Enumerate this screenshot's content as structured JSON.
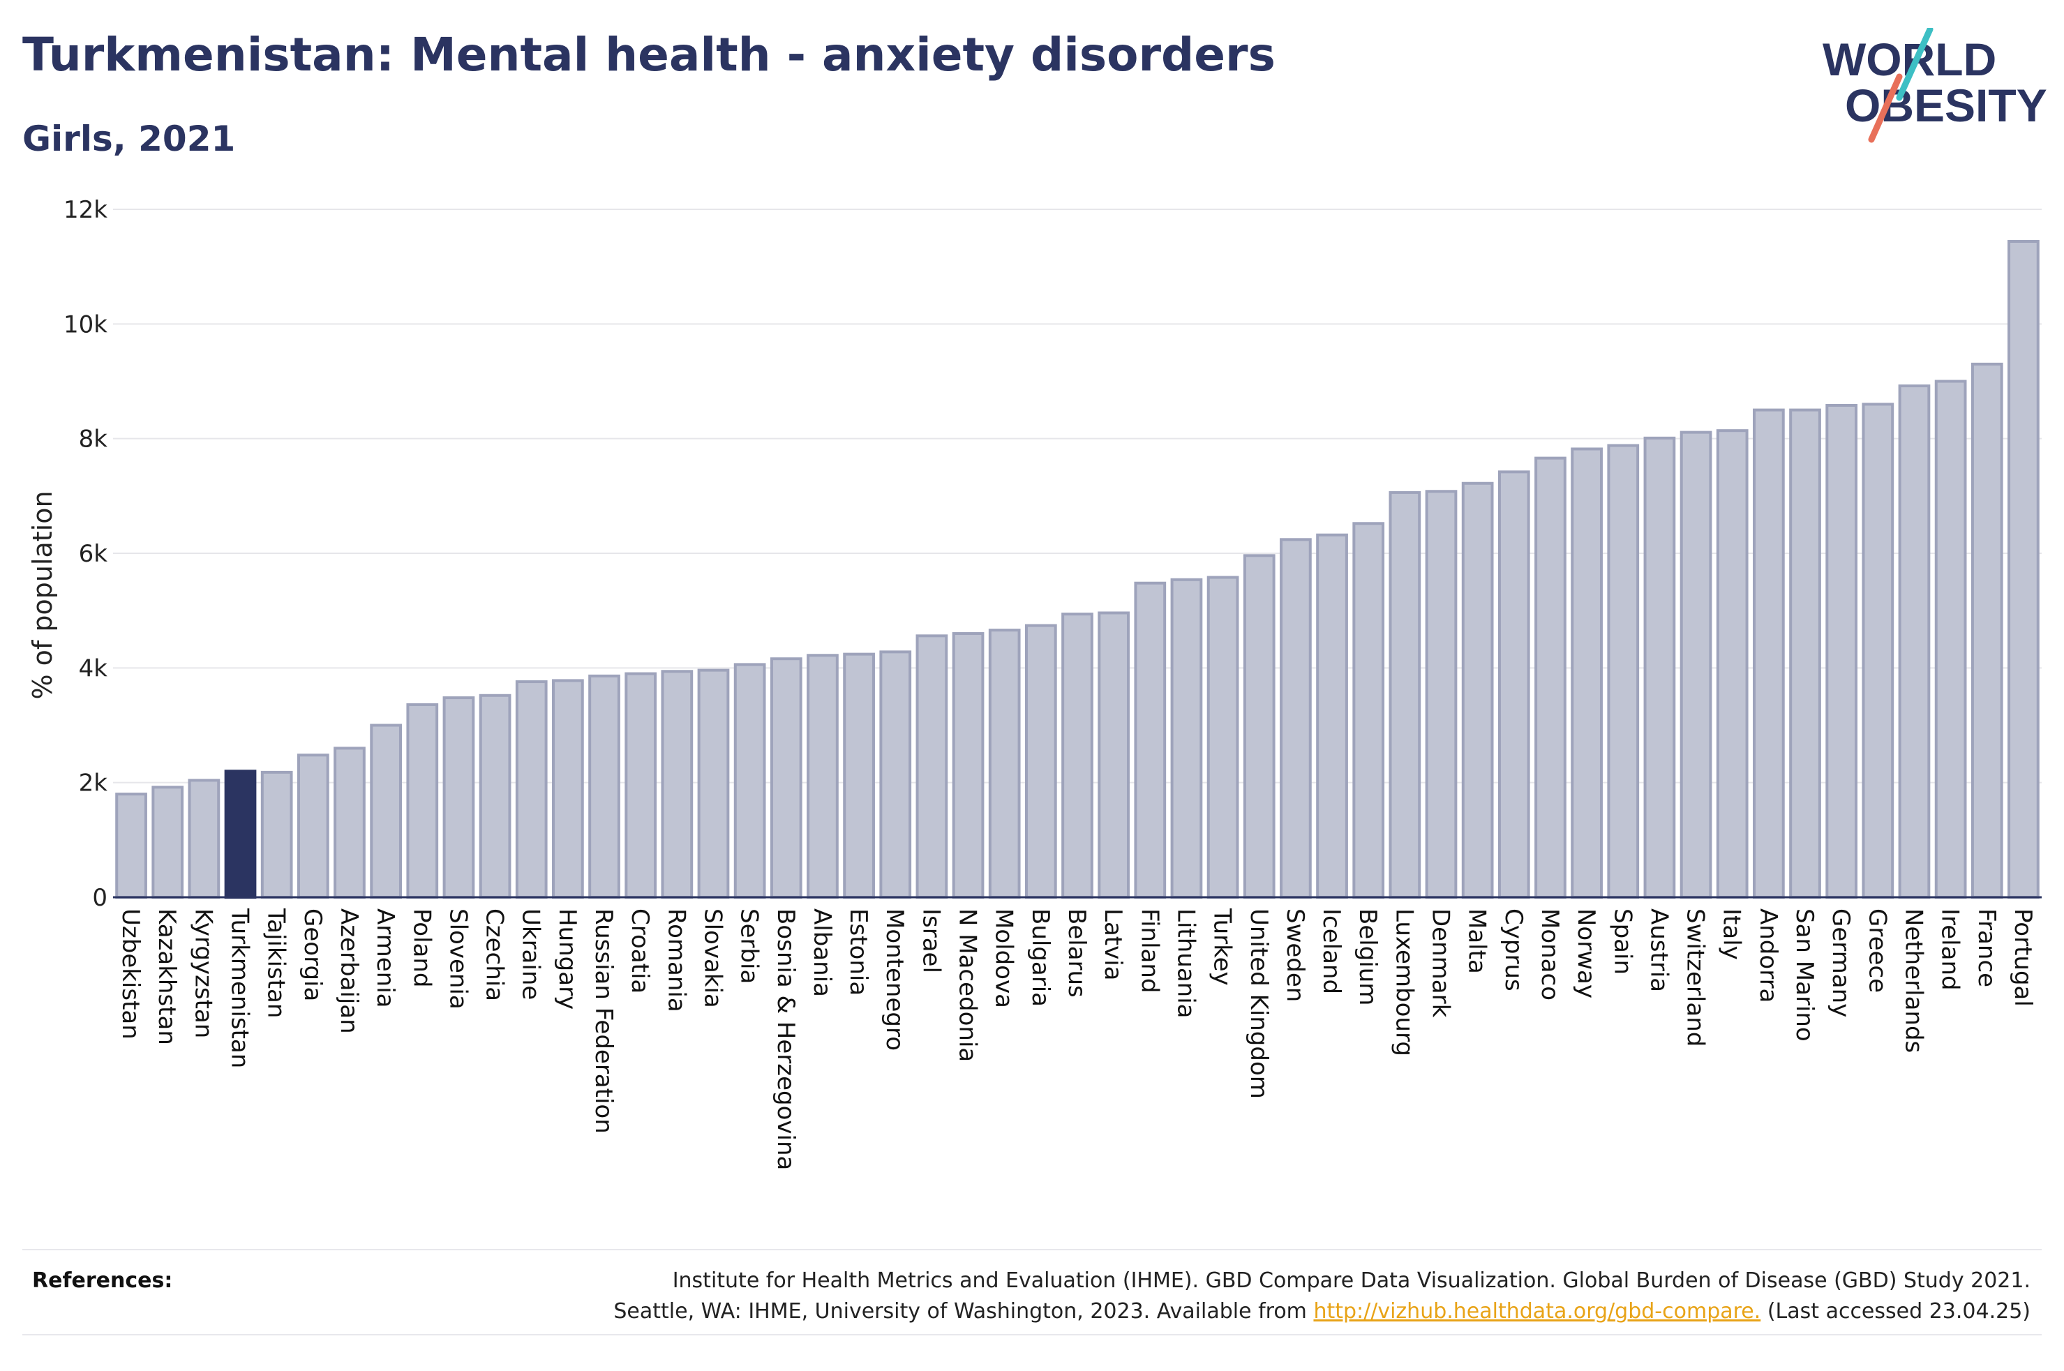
{
  "header": {
    "title": "Turkmenistan: Mental health - anxiety disorders",
    "subtitle": "Girls, 2021"
  },
  "logo": {
    "line1": "WORLD",
    "line2": "OBESITY"
  },
  "colors": {
    "bar_fill": "#c0c4d3",
    "bar_stroke": "#9ea3bb",
    "highlight": "#2b3461",
    "grid": "#e6e6ea",
    "text": "#2b3461",
    "link": "#e8a317",
    "logo_teal": "#3dbfc4",
    "logo_coral": "#e8705a"
  },
  "chart_data": {
    "type": "bar",
    "title": "Turkmenistan: Mental health - anxiety disorders",
    "subtitle": "Girls, 2021",
    "ylabel": "% of population",
    "xlabel": "",
    "ylim": [
      0,
      12000
    ],
    "yticks": [
      0,
      2000,
      4000,
      6000,
      8000,
      10000,
      12000
    ],
    "ytick_labels": [
      "0",
      "2k",
      "4k",
      "6k",
      "8k",
      "10k",
      "12k"
    ],
    "grid": "horizontal",
    "highlight": "Turkmenistan",
    "categories": [
      "Uzbekistan",
      "Kazakhstan",
      "Kyrgyzstan",
      "Turkmenistan",
      "Tajikistan",
      "Georgia",
      "Azerbaijan",
      "Armenia",
      "Poland",
      "Slovenia",
      "Czechia",
      "Ukraine",
      "Hungary",
      "Russian Federation",
      "Croatia",
      "Romania",
      "Slovakia",
      "Serbia",
      "Bosnia & Herzegovina",
      "Albania",
      "Estonia",
      "Montenegro",
      "Israel",
      "N Macedonia",
      "Moldova",
      "Bulgaria",
      "Belarus",
      "Latvia",
      "Finland",
      "Lithuania",
      "Turkey",
      "United Kingdom",
      "Sweden",
      "Iceland",
      "Belgium",
      "Luxembourg",
      "Denmark",
      "Malta",
      "Cyprus",
      "Monaco",
      "Norway",
      "Spain",
      "Austria",
      "Switzerland",
      "Italy",
      "Andorra",
      "San Marino",
      "Germany",
      "Greece",
      "Netherlands",
      "Ireland",
      "France",
      "Portugal"
    ],
    "values": [
      1800,
      1920,
      2040,
      2200,
      2180,
      2480,
      2600,
      3000,
      3360,
      3480,
      3520,
      3760,
      3780,
      3860,
      3900,
      3940,
      3960,
      4060,
      4160,
      4220,
      4240,
      4280,
      4560,
      4600,
      4660,
      4740,
      4940,
      4960,
      5480,
      5540,
      5580,
      5960,
      6240,
      6320,
      6520,
      7060,
      7080,
      7220,
      7420,
      7660,
      7820,
      7880,
      8010,
      8110,
      8140,
      8500,
      8500,
      8580,
      8600,
      8920,
      9000,
      9300,
      11440
    ]
  },
  "references": {
    "label": "References:",
    "line1": "Institute for Health Metrics and Evaluation (IHME). GBD Compare Data Visualization. Global Burden of Disease (GBD) Study 2021.",
    "line2_prefix": "Seattle, WA: IHME, University of Washington, 2023. Available from ",
    "link": "http://vizhub.healthdata.org/gbd-compare.",
    "line2_suffix": " (Last accessed 23.04.25)"
  }
}
